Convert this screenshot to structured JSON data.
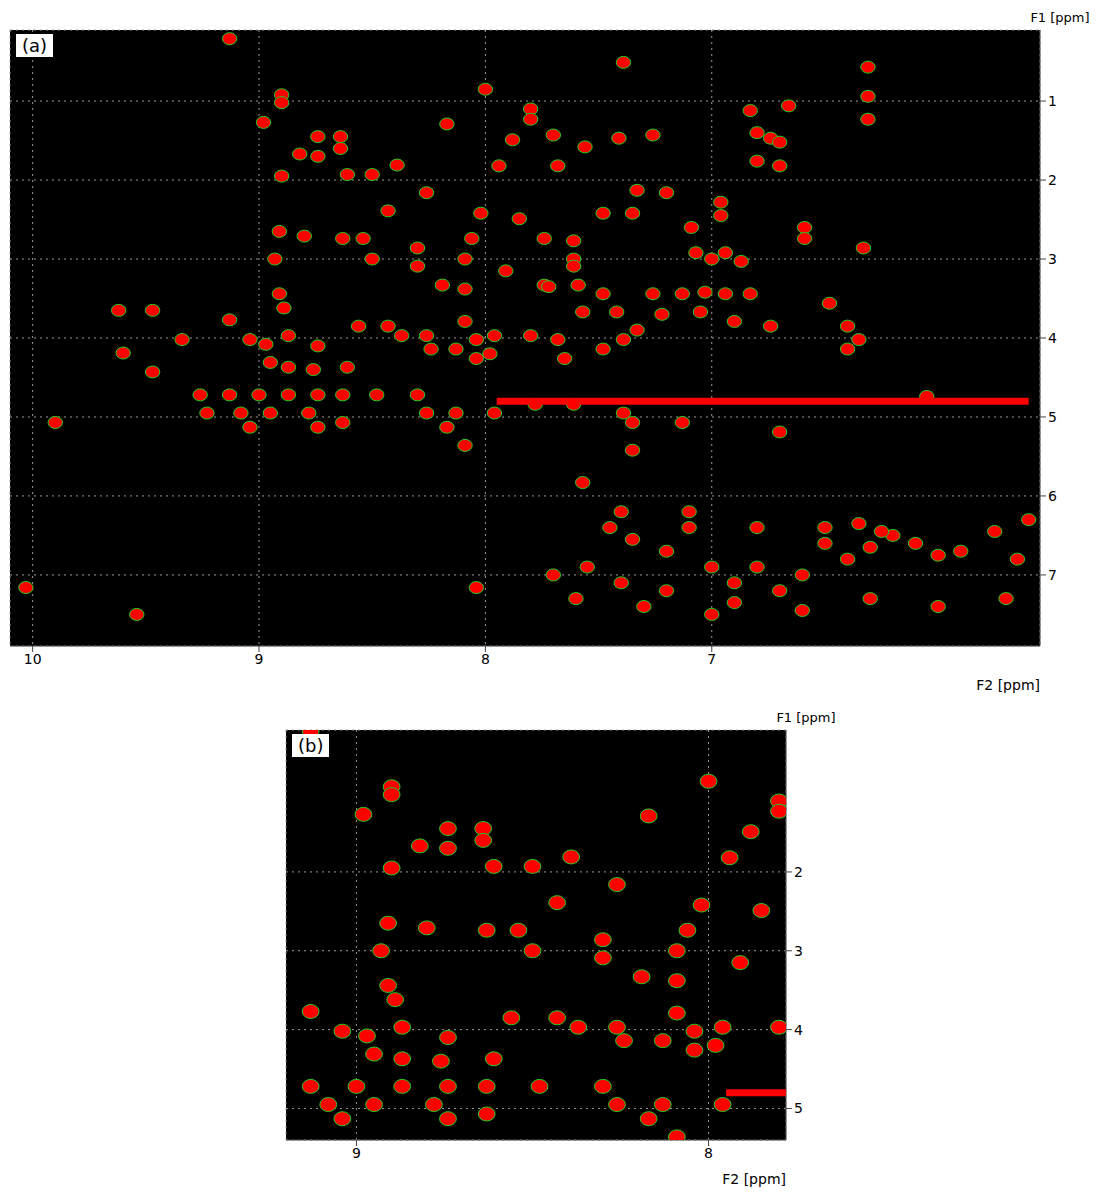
{
  "chart_data": [
    {
      "type": "scatter",
      "title": "(a)",
      "x_label": "F2 [ppm]",
      "y_label": "F1 [ppm]",
      "xlim": [
        10.1,
        5.55
      ],
      "ylim": [
        0.1,
        7.9
      ],
      "xticks": [
        10,
        9,
        8,
        7
      ],
      "yticks": [
        1,
        2,
        3,
        4,
        5,
        6,
        7
      ],
      "grid": true,
      "series": [
        {
          "type": "scatter",
          "color": "#ff0000",
          "marker": "circle",
          "x": [
            9.13,
            8.0,
            7.39,
            6.31,
            8.9,
            8.9,
            8.98,
            8.64,
            8.64,
            8.74,
            8.82,
            8.74,
            8.9,
            8.17,
            7.88,
            7.7,
            7.8,
            7.8,
            7.41,
            7.26,
            6.83,
            6.66,
            6.31,
            6.31,
            6.8,
            6.74,
            6.7,
            6.8,
            6.7,
            7.56,
            7.94,
            7.68,
            8.26,
            8.39,
            8.61,
            8.5,
            8.43,
            8.54,
            8.63,
            8.5,
            8.91,
            8.93,
            8.8,
            8.02,
            8.06,
            8.09,
            7.85,
            7.74,
            7.61,
            7.61,
            7.33,
            7.35,
            7.48,
            7.2,
            7.09,
            7.07,
            7.0,
            6.94,
            6.87,
            6.96,
            6.96,
            6.59,
            6.59,
            6.33,
            8.3,
            8.3,
            8.19,
            8.09,
            7.91,
            7.74,
            7.72,
            7.59,
            7.61,
            7.48,
            7.26,
            7.13,
            7.03,
            6.94,
            6.83,
            8.91,
            8.89,
            9.47,
            9.62,
            9.13,
            9.6,
            9.34,
            9.47,
            8.97,
            9.04,
            8.87,
            8.74,
            8.87,
            8.95,
            8.76,
            8.61,
            8.56,
            8.43,
            8.37,
            8.26,
            8.24,
            8.13,
            8.09,
            8.04,
            8.04,
            7.96,
            7.98,
            7.8,
            7.68,
            7.65,
            7.48,
            7.39,
            7.33,
            7.57,
            7.42,
            7.22,
            7.05,
            6.9,
            6.74,
            6.48,
            6.4,
            6.4,
            6.35,
            6.05,
            9.26,
            9.13,
            9.0,
            8.87,
            8.74,
            8.63,
            8.48,
            8.3,
            9.23,
            9.08,
            8.95,
            8.78,
            8.63,
            8.26,
            8.13,
            9.04,
            8.74,
            8.17,
            7.96,
            7.78,
            7.61,
            8.09,
            7.57,
            7.39,
            7.13,
            7.35,
            7.35,
            6.7,
            9.9,
            10.03,
            9.54,
            8.04,
            7.55,
            7.45,
            7.35,
            7.2,
            7.1,
            7.0,
            6.9,
            6.8,
            6.7,
            6.6,
            6.5,
            6.4,
            6.3,
            6.2,
            6.1,
            6.0,
            5.9,
            5.75,
            5.65,
            5.7,
            6.0,
            6.3,
            6.6,
            7.0,
            7.3,
            7.6,
            7.7,
            7.4,
            7.2,
            6.9,
            6.5,
            6.8,
            7.1,
            7.4,
            5.6,
            6.35,
            6.25
          ],
          "y": [
            0.21,
            0.85,
            0.51,
            0.57,
            0.92,
            1.02,
            1.27,
            1.45,
            1.6,
            1.45,
            1.67,
            1.7,
            1.95,
            1.29,
            1.49,
            1.43,
            1.1,
            1.23,
            1.47,
            1.43,
            1.12,
            1.06,
            0.94,
            1.23,
            1.4,
            1.47,
            1.52,
            1.76,
            1.82,
            1.58,
            1.82,
            1.82,
            2.16,
            1.81,
            1.93,
            1.93,
            2.39,
            2.74,
            2.74,
            3.0,
            2.65,
            3.0,
            2.71,
            2.42,
            2.74,
            3.0,
            2.49,
            2.74,
            2.77,
            3.0,
            2.13,
            2.42,
            2.42,
            2.16,
            2.6,
            2.92,
            3.0,
            2.92,
            3.03,
            2.28,
            2.45,
            2.6,
            2.74,
            2.86,
            2.86,
            3.09,
            3.33,
            3.38,
            3.15,
            3.33,
            3.35,
            3.33,
            3.09,
            3.44,
            3.44,
            3.44,
            3.42,
            3.44,
            3.44,
            3.44,
            3.62,
            3.65,
            3.65,
            3.77,
            4.19,
            4.02,
            4.43,
            4.08,
            4.02,
            3.97,
            4.1,
            4.37,
            4.31,
            4.4,
            4.37,
            3.85,
            3.85,
            3.97,
            3.97,
            4.14,
            4.14,
            3.79,
            4.02,
            4.26,
            3.97,
            4.2,
            3.97,
            4.02,
            4.26,
            4.14,
            4.02,
            3.9,
            3.67,
            3.67,
            3.7,
            3.67,
            3.79,
            3.85,
            3.56,
            3.85,
            4.14,
            4.02,
            4.74,
            4.72,
            4.72,
            4.72,
            4.72,
            4.72,
            4.72,
            4.72,
            4.72,
            4.95,
            4.95,
            4.95,
            4.95,
            5.07,
            4.95,
            4.95,
            5.13,
            5.13,
            5.13,
            4.95,
            4.84,
            4.84,
            5.36,
            5.83,
            4.95,
            5.07,
            5.07,
            5.42,
            5.19,
            5.07,
            7.16,
            7.5,
            7.16,
            6.9,
            6.4,
            6.55,
            6.7,
            6.4,
            6.9,
            7.1,
            6.9,
            7.2,
            7.0,
            6.6,
            6.8,
            6.65,
            6.5,
            6.6,
            6.75,
            6.7,
            6.45,
            6.8,
            7.3,
            7.4,
            7.3,
            7.45,
            7.5,
            7.4,
            7.3,
            7.0,
            7.1,
            7.2,
            7.35,
            6.4,
            6.4,
            6.2,
            6.2,
            6.3,
            6.35,
            6.45
          ]
        },
        {
          "type": "line",
          "color": "#ff0000",
          "x": [
            7.95,
            5.6
          ],
          "y": [
            4.8,
            4.8
          ]
        }
      ]
    },
    {
      "type": "scatter",
      "title": "(b)",
      "x_label": "F2 [ppm]",
      "y_label": "F1 [ppm]",
      "xlim": [
        9.2,
        7.78
      ],
      "ylim": [
        0.2,
        5.4
      ],
      "xticks": [
        9,
        8
      ],
      "yticks": [
        2,
        3,
        4,
        5
      ],
      "grid": true,
      "series": [
        {
          "type": "scatter",
          "color": "#ff0000",
          "marker": "circle",
          "x": [
            9.13,
            8.0,
            8.9,
            8.9,
            8.98,
            8.64,
            8.64,
            8.74,
            8.82,
            8.74,
            8.9,
            8.17,
            7.88,
            7.8,
            7.8,
            7.94,
            8.26,
            8.39,
            8.61,
            8.5,
            8.43,
            8.54,
            8.63,
            8.5,
            8.91,
            8.93,
            8.8,
            8.02,
            8.06,
            8.09,
            7.85,
            8.3,
            8.3,
            8.19,
            8.09,
            7.91,
            8.91,
            8.89,
            9.13,
            8.97,
            9.04,
            8.87,
            8.74,
            8.87,
            8.95,
            8.76,
            8.61,
            8.56,
            8.43,
            8.37,
            8.26,
            8.24,
            8.13,
            8.09,
            8.04,
            8.04,
            7.96,
            7.98,
            7.8,
            9.13,
            9.0,
            8.87,
            8.74,
            8.63,
            8.48,
            8.3,
            9.08,
            8.95,
            8.78,
            8.63,
            8.26,
            8.13,
            9.04,
            8.74,
            8.17,
            7.96,
            8.09
          ],
          "y": [
            0.21,
            0.85,
            0.92,
            1.02,
            1.27,
            1.45,
            1.6,
            1.45,
            1.67,
            1.7,
            1.95,
            1.29,
            1.49,
            1.1,
            1.23,
            1.82,
            2.16,
            1.81,
            1.93,
            1.93,
            2.39,
            2.74,
            2.74,
            3.0,
            2.65,
            3.0,
            2.71,
            2.42,
            2.74,
            3.0,
            2.49,
            2.86,
            3.09,
            3.33,
            3.38,
            3.15,
            3.44,
            3.62,
            3.77,
            4.08,
            4.02,
            3.97,
            4.1,
            4.37,
            4.31,
            4.4,
            4.37,
            3.85,
            3.85,
            3.97,
            3.97,
            4.14,
            4.14,
            3.79,
            4.02,
            4.26,
            3.97,
            4.2,
            3.97,
            4.72,
            4.72,
            4.72,
            4.72,
            4.72,
            4.72,
            4.72,
            4.95,
            4.95,
            4.95,
            5.07,
            4.95,
            4.95,
            5.13,
            5.13,
            5.13,
            4.95,
            5.36
          ]
        },
        {
          "type": "line",
          "color": "#ff0000",
          "x": [
            7.95,
            7.78
          ],
          "y": [
            4.8,
            4.8
          ]
        }
      ]
    }
  ]
}
